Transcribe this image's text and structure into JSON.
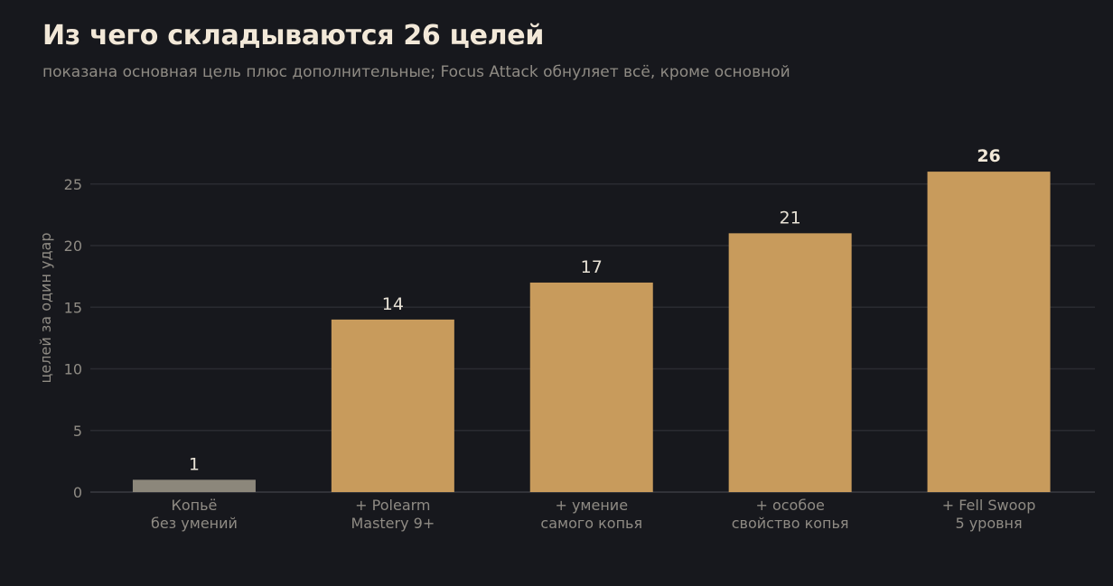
{
  "colors": {
    "background": "#17181d",
    "bar_base": "#8c877b",
    "bar_highlight": "#c89b5c",
    "text_muted": "#8f8b84",
    "text_main": "#f2e8d8"
  },
  "chart_data": {
    "type": "bar",
    "title": "Из чего складываются 26 целей",
    "subtitle": "показана основная цель плюс дополнительные; Focus Attack обнуляет всё, кроме основной",
    "ylabel": "целей за один удар",
    "xlabel": "",
    "ylim": [
      0,
      26
    ],
    "yticks": [
      0,
      5,
      10,
      15,
      20,
      25
    ],
    "grid": true,
    "categories": [
      [
        "Копьё",
        "без умений"
      ],
      [
        "+ Polearm",
        "Mastery 9+"
      ],
      [
        "+ умение",
        "самого копья"
      ],
      [
        "+ особое",
        "свойство копья"
      ],
      [
        "+ Fell Swoop",
        "5 уровня"
      ]
    ],
    "values": [
      1,
      14,
      17,
      21,
      26
    ],
    "value_labels": [
      "1",
      "14",
      "17",
      "21",
      "26"
    ],
    "bar_colors": [
      "#8c877b",
      "#c89b5c",
      "#c89b5c",
      "#c89b5c",
      "#c89b5c"
    ],
    "emphasized_label_index": 4
  }
}
